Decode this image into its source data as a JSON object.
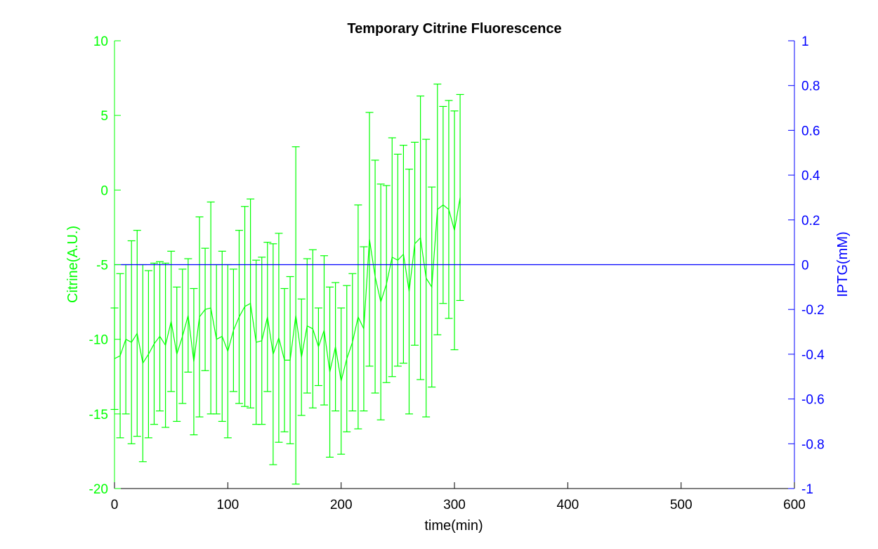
{
  "chart_data": {
    "type": "line",
    "title": "Temporary Citrine Fluorescence",
    "xlabel": "time(min)",
    "ylabel_left": "Citrine(A.U.)",
    "ylabel_right": "IPTG(mM)",
    "xlim": [
      0,
      600
    ],
    "ylim_left": [
      -20,
      10
    ],
    "ylim_right": [
      -1,
      1
    ],
    "x_ticks": [
      "0",
      "100",
      "200",
      "300",
      "400",
      "500",
      "600"
    ],
    "y_left_ticks": [
      "10",
      "5",
      "0",
      "-5",
      "-10",
      "-15",
      "-20"
    ],
    "y_right_ticks": [
      "1",
      "0.8",
      "0.6",
      "0.4",
      "0.2",
      "0",
      "-0.2",
      "-0.4",
      "-0.6",
      "-0.8",
      "-1"
    ],
    "colors": {
      "citrine": "#00ff00",
      "iptg": "#0000ff",
      "text": "#000000"
    },
    "grid": false,
    "series": [
      {
        "axis": "left",
        "errorbars": true,
        "x": [
          0,
          5,
          10,
          15,
          20,
          25,
          30,
          35,
          40,
          45,
          50,
          55,
          60,
          65,
          70,
          75,
          80,
          85,
          90,
          95,
          100,
          105,
          110,
          115,
          120,
          125,
          130,
          135,
          140,
          145,
          150,
          155,
          160,
          165,
          170,
          175,
          180,
          185,
          190,
          195,
          200,
          205,
          210,
          215,
          220,
          225,
          230,
          235,
          240,
          245,
          250,
          255,
          260,
          265,
          270,
          275,
          280,
          285,
          290,
          295,
          300,
          305
        ],
        "y": [
          -11.3,
          -11.1,
          -10.0,
          -10.2,
          -9.6,
          -11.6,
          -11.0,
          -10.3,
          -9.8,
          -10.4,
          -8.8,
          -11.0,
          -9.8,
          -8.4,
          -11.5,
          -8.5,
          -8.0,
          -7.9,
          -10.0,
          -9.8,
          -10.8,
          -9.4,
          -8.5,
          -7.8,
          -7.6,
          -10.2,
          -10.1,
          -8.5,
          -11.0,
          -9.9,
          -11.4,
          -11.4,
          -8.4,
          -11.2,
          -9.1,
          -9.3,
          -10.5,
          -9.4,
          -12.2,
          -10.5,
          -12.8,
          -11.3,
          -10.2,
          -8.5,
          -9.3,
          -3.3,
          -5.8,
          -7.5,
          -6.3,
          -4.5,
          -4.7,
          -4.3,
          -6.8,
          -3.6,
          -3.2,
          -5.9,
          -6.5,
          -1.3,
          -1.0,
          -1.3,
          -2.7,
          -0.5
        ],
        "yerr": [
          3.4,
          5.5,
          5.0,
          6.8,
          6.9,
          6.6,
          5.6,
          5.4,
          5.0,
          5.5,
          4.7,
          4.5,
          4.5,
          3.8,
          4.9,
          6.7,
          4.1,
          7.1,
          5.0,
          5.7,
          5.8,
          4.1,
          5.8,
          6.7,
          7.0,
          5.5,
          5.6,
          5.0,
          7.4,
          7.0,
          4.8,
          5.6,
          11.3,
          3.9,
          4.5,
          5.3,
          2.6,
          5.0,
          5.7,
          4.3,
          4.9,
          4.9,
          4.6,
          7.5,
          5.5,
          8.5,
          7.8,
          7.9,
          6.6,
          8.0,
          7.1,
          7.3,
          8.2,
          6.8,
          9.5,
          9.3,
          6.7,
          8.4,
          6.6,
          7.3,
          8.0,
          6.9
        ]
      },
      {
        "axis": "right",
        "errorbars": false,
        "x": [
          0,
          600
        ],
        "y": [
          0,
          0
        ]
      }
    ]
  }
}
